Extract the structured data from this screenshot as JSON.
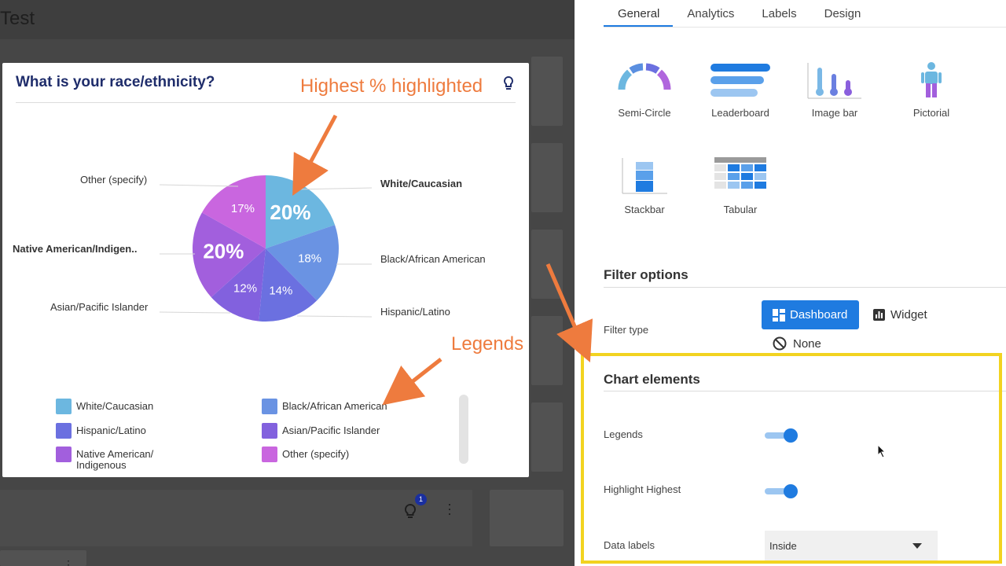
{
  "app": {
    "title": "Test"
  },
  "widget": {
    "question": "What is your race/ethnicity?",
    "highlight_annotation": "Highest % highlighted",
    "legends_annotation": "Legends",
    "tip_badge_count": "1"
  },
  "chart_data": {
    "type": "pie",
    "title": "What is your race/ethnicity?",
    "slices": [
      {
        "label": "White/Caucasian",
        "value": 20,
        "label_text": "20%",
        "color": "#6cb7e0",
        "highlighted": true
      },
      {
        "label": "Black/African American",
        "value": 18,
        "label_text": "18%",
        "color": "#6a93e3",
        "highlighted": false
      },
      {
        "label": "Hispanic/Latino",
        "value": 14,
        "label_text": "14%",
        "color": "#6b70e0",
        "highlighted": false
      },
      {
        "label": "Asian/Pacific Islander",
        "value": 12,
        "label_text": "12%",
        "color": "#8261de",
        "highlighted": false
      },
      {
        "label": "Native American/Indigenous",
        "value": 20,
        "label_text": "20%",
        "color": "#a25fdd",
        "highlighted": true
      },
      {
        "label": "Other (specify)",
        "value": 17,
        "label_text": "17%",
        "color": "#c966df",
        "highlighted": false
      }
    ],
    "outer_labels": {
      "white": "White/Caucasian",
      "black": "Black/African American",
      "hispanic": "Hispanic/Latino",
      "asian": "Asian/Pacific Islander",
      "native": "Native American/Indigen..",
      "other": "Other (specify)"
    },
    "legend": [
      {
        "label": "White/Caucasian",
        "color": "#6cb7e0"
      },
      {
        "label": "Black/African American",
        "color": "#6a93e3"
      },
      {
        "label": "Hispanic/Latino",
        "color": "#6b70e0"
      },
      {
        "label": "Asian/Pacific Islander",
        "color": "#8261de"
      },
      {
        "label": "Native American/ Indigenous",
        "color": "#a25fdd"
      },
      {
        "label": "Other (specify)",
        "color": "#c966df"
      }
    ],
    "legend_placement": "bottom",
    "data_labels": "inside"
  },
  "panel": {
    "tabs": [
      "General",
      "Analytics",
      "Labels",
      "Design"
    ],
    "active_tab": "General",
    "chart_types": [
      "Semi-Circle",
      "Leaderboard",
      "Image bar",
      "Pictorial",
      "Stackbar",
      "Tabular"
    ],
    "filter": {
      "title": "Filter options",
      "type_label": "Filter type",
      "dashboard": "Dashboard",
      "widget": "Widget",
      "none": "None"
    },
    "elements": {
      "title": "Chart elements",
      "legends_label": "Legends",
      "legends_on": true,
      "highlight_label": "Highlight Highest",
      "highlight_on": true,
      "data_labels_label": "Data labels",
      "data_labels_value": "Inside"
    }
  },
  "colors": {
    "accent": "#1f7be0",
    "annotation": "#ee7b3e",
    "highlight_box": "#f2d320"
  }
}
